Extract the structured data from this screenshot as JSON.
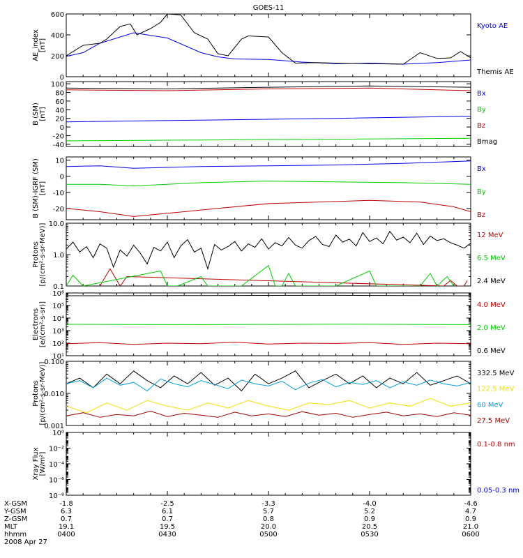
{
  "title": "GOES-11",
  "colors": {
    "black": "#000000",
    "red": "#c00000",
    "green": "#00cc00",
    "blue": "#0000ee",
    "cyan": "#00a0e0",
    "yellow": "#f0e000",
    "dark_red": "#a00000"
  },
  "time_axis": {
    "rows": [
      {
        "label": "X-GSM",
        "values": [
          "-1.8",
          "-2.5",
          "-3.3",
          "-4.0",
          "-4.6"
        ]
      },
      {
        "label": "Y-GSM",
        "values": [
          "6.3",
          "6.1",
          "5.7",
          "5.2",
          "4.7"
        ]
      },
      {
        "label": "Z-GSM",
        "values": [
          "0.7",
          "0.7",
          "0.8",
          "0.9",
          "0.9"
        ]
      },
      {
        "label": "MLT",
        "values": [
          "19.1",
          "19.5",
          "20.0",
          "20.5",
          "21.0"
        ]
      },
      {
        "label": "hhmm",
        "values": [
          "0400",
          "0430",
          "0500",
          "0530",
          "0600"
        ]
      }
    ],
    "date": "2008 Apr 27"
  },
  "chart_data": [
    {
      "type": "line",
      "scale": "linear",
      "ylabel": [
        "AE_index",
        "[nT]"
      ],
      "ylim": [
        0,
        600
      ],
      "yticks": [
        0,
        200,
        400,
        600
      ],
      "ytick_labels": [
        "0",
        "200",
        "400",
        "600"
      ],
      "series": [
        {
          "name": "Kyoto AE",
          "color": "#0000ee",
          "x": [
            0,
            5,
            10,
            20,
            30,
            40,
            45,
            50,
            60,
            70,
            80,
            90,
            100,
            110,
            120
          ],
          "y": [
            195,
            230,
            320,
            420,
            370,
            230,
            190,
            170,
            165,
            140,
            125,
            130,
            120,
            135,
            160
          ]
        },
        {
          "name": "Themis AE",
          "color": "#000000",
          "x": [
            0,
            5,
            10,
            12,
            16,
            19,
            21,
            25,
            28,
            30,
            34,
            38,
            42,
            45,
            48,
            52,
            54,
            60,
            64,
            68,
            74,
            80,
            90,
            100,
            105,
            110,
            114,
            117,
            120
          ],
          "y": [
            200,
            300,
            320,
            360,
            480,
            505,
            400,
            460,
            520,
            600,
            590,
            420,
            360,
            220,
            200,
            360,
            390,
            380,
            230,
            130,
            135,
            130,
            125,
            120,
            230,
            175,
            180,
            240,
            180
          ]
        }
      ]
    },
    {
      "type": "line",
      "scale": "linear",
      "ylabel": [
        "B (SM)",
        "[nT]"
      ],
      "ylim": [
        -45,
        105
      ],
      "yticks": [
        -40,
        -20,
        0,
        20,
        40,
        60,
        80,
        100
      ],
      "ytick_labels": [
        "-40",
        "-20",
        "0",
        "20",
        "40",
        "60",
        "80",
        "100"
      ],
      "series": [
        {
          "name": "Bx",
          "color": "#0000ee",
          "x": [
            0,
            40,
            80,
            120
          ],
          "y": [
            12,
            16,
            20,
            25
          ]
        },
        {
          "name": "By",
          "color": "#00cc00",
          "x": [
            0,
            40,
            80,
            120
          ],
          "y": [
            -32,
            -30,
            -28,
            -26
          ]
        },
        {
          "name": "Bz",
          "color": "#c00000",
          "x": [
            0,
            30,
            60,
            90,
            120
          ],
          "y": [
            86,
            84,
            88,
            90,
            84
          ]
        },
        {
          "name": "Bmag",
          "color": "#000000",
          "x": [
            0,
            30,
            60,
            90,
            120
          ],
          "y": [
            90,
            88,
            92,
            95,
            92
          ]
        }
      ]
    },
    {
      "type": "line",
      "scale": "linear",
      "ylabel": [
        "B (SM)-IGRF (SM)",
        "[nT]"
      ],
      "ylim": [
        -27,
        12
      ],
      "yticks": [
        -20,
        -10,
        0,
        10
      ],
      "ytick_labels": [
        "-20",
        "-10",
        "0",
        "10"
      ],
      "series": [
        {
          "name": "Bx",
          "color": "#0000ee",
          "x": [
            0,
            10,
            20,
            40,
            60,
            80,
            100,
            120
          ],
          "y": [
            6,
            6.5,
            5,
            6,
            6.5,
            7,
            8,
            9.5
          ]
        },
        {
          "name": "By",
          "color": "#00cc00",
          "x": [
            0,
            10,
            20,
            40,
            60,
            80,
            100,
            120
          ],
          "y": [
            -5,
            -5,
            -6,
            -4,
            -3,
            -3.5,
            -4,
            -5
          ]
        },
        {
          "name": "Bz",
          "color": "#c00000",
          "x": [
            0,
            10,
            20,
            30,
            45,
            60,
            75,
            90,
            105,
            115,
            120
          ],
          "y": [
            -20,
            -22,
            -25,
            -23,
            -20,
            -17,
            -16,
            -15,
            -16,
            -19,
            -22
          ]
        }
      ]
    },
    {
      "type": "line",
      "scale": "log",
      "ylabel": [
        "Protons",
        "[p/(cm²-s-sr-MeV)]"
      ],
      "ylim": [
        0.1,
        10
      ],
      "yticks": [
        0.1,
        1,
        10
      ],
      "ytick_labels": [
        "0.1",
        "1.0",
        "10.0"
      ],
      "series": [
        {
          "name": "12 MeV",
          "color": "#c00000",
          "x": [
            10,
            13,
            16,
            18,
            112,
            114,
            116,
            118,
            119
          ],
          "y": [
            0.1,
            0.35,
            0.1,
            0.2,
            0.1,
            0.15,
            0.1,
            0.1,
            0.15
          ]
        },
        {
          "name": "6.5 MeV",
          "color": "#00cc00",
          "x": [
            0,
            2,
            5,
            28,
            30,
            33,
            40,
            42,
            48,
            50,
            52,
            60,
            62,
            64,
            66,
            68,
            72,
            78,
            80,
            90,
            92,
            94,
            97,
            105,
            108,
            110,
            113,
            115
          ],
          "y": [
            0.1,
            0.22,
            0.1,
            0.3,
            0.1,
            0.1,
            0.2,
            0.1,
            0.1,
            0.1,
            0.1,
            0.45,
            0.1,
            0.1,
            0.25,
            0.1,
            0.1,
            0.1,
            0.1,
            0.3,
            0.1,
            0.1,
            0.1,
            0.1,
            0.25,
            0.1,
            0.2,
            0.1
          ]
        },
        {
          "name": "2.4 MeV",
          "color": "#000000",
          "x": [
            0,
            2,
            4,
            6,
            8,
            10,
            12,
            14,
            16,
            18,
            20,
            22,
            24,
            26,
            28,
            30,
            32,
            34,
            36,
            38,
            40,
            42,
            44,
            46,
            48,
            50,
            52,
            54,
            56,
            58,
            60,
            62,
            64,
            66,
            68,
            70,
            72,
            74,
            76,
            78,
            80,
            82,
            84,
            86,
            88,
            90,
            92,
            94,
            96,
            98,
            100,
            102,
            104,
            106,
            108,
            110,
            112,
            114,
            116,
            118,
            120
          ],
          "y": [
            1.5,
            2.5,
            1.2,
            1.8,
            0.8,
            2.2,
            1.6,
            0.4,
            1.4,
            0.9,
            2,
            1.1,
            0.5,
            1.7,
            1.3,
            2.5,
            0.8,
            1.9,
            3,
            1.2,
            1.6,
            0.35,
            2.1,
            1.4,
            1.8,
            2.6,
            1.3,
            2.2,
            1.7,
            3.2,
            1.5,
            2.4,
            1.9,
            3.5,
            2,
            1.6,
            2.8,
            3.8,
            2.1,
            1.8,
            4.2,
            2.5,
            3.1,
            1.9,
            5,
            2.6,
            3.4,
            2.2,
            5.5,
            2.9,
            3.6,
            2.4,
            4.8,
            2.1,
            3.9,
            2.8,
            3.2,
            2.4,
            2,
            1.6,
            2.3
          ]
        }
      ]
    },
    {
      "type": "line",
      "scale": "log",
      "ylabel": [
        "Electrons",
        "[e/(cm²-s-sr)]"
      ],
      "ylim": [
        10,
        1000000
      ],
      "yticks": [
        10,
        100,
        1000,
        10000,
        100000,
        1000000
      ],
      "ytick_labels": [
        "10¹",
        "10²",
        "10³",
        "10⁴",
        "10⁵",
        "10⁶"
      ],
      "series": [
        {
          "name": "4.0 MeV",
          "color": "#c00000",
          "x": [
            0,
            10,
            20,
            30,
            40,
            50,
            60,
            70,
            80,
            90,
            100,
            110,
            120
          ],
          "y": [
            90,
            110,
            80,
            100,
            90,
            120,
            85,
            100,
            95,
            110,
            80,
            100,
            90
          ]
        },
        {
          "name": "2.0 MeV",
          "color": "#00cc00",
          "x": [
            0,
            40,
            80,
            120
          ],
          "y": [
            3200,
            3000,
            3300,
            3000
          ]
        },
        {
          "name": "0.6 MeV",
          "color": "#000000",
          "x": [
            0,
            40,
            80,
            120
          ],
          "y": [
            600000,
            620000,
            650000,
            600000
          ]
        }
      ]
    },
    {
      "type": "line",
      "scale": "log",
      "ylabel": [
        "Protons",
        "[p/(cm²-s-sr-MeV)]"
      ],
      "ylim": [
        0.001,
        0.1
      ],
      "yticks": [
        0.001,
        0.01,
        0.1
      ],
      "ytick_labels": [
        "0.001",
        "0.010",
        "0.100"
      ],
      "series": [
        {
          "name": "332.5 MeV",
          "color": "#000000",
          "x": [
            0,
            4,
            8,
            12,
            16,
            20,
            24,
            28,
            32,
            36,
            40,
            44,
            48,
            52,
            56,
            60,
            64,
            68,
            72,
            76,
            80,
            84,
            88,
            92,
            96,
            100,
            104,
            108,
            112,
            116,
            120
          ],
          "y": [
            0.02,
            0.03,
            0.015,
            0.04,
            0.02,
            0.05,
            0.025,
            0.015,
            0.035,
            0.02,
            0.045,
            0.018,
            0.03,
            0.012,
            0.04,
            0.02,
            0.03,
            0.05,
            0.015,
            0.025,
            0.04,
            0.02,
            0.035,
            0.015,
            0.03,
            0.02,
            0.045,
            0.018,
            0.025,
            0.035,
            0.02
          ]
        },
        {
          "name": "122.5 MeV",
          "color": "#f0e000",
          "x": [
            0,
            6,
            12,
            18,
            24,
            30,
            36,
            42,
            48,
            54,
            60,
            66,
            72,
            78,
            84,
            90,
            96,
            102,
            108,
            114,
            120
          ],
          "y": [
            0.004,
            0.0025,
            0.005,
            0.003,
            0.006,
            0.004,
            0.003,
            0.005,
            0.0035,
            0.006,
            0.004,
            0.003,
            0.005,
            0.0045,
            0.006,
            0.0035,
            0.005,
            0.004,
            0.007,
            0.004,
            0.005
          ]
        },
        {
          "name": "60 MeV",
          "color": "#00a0e0",
          "x": [
            0,
            4,
            8,
            12,
            16,
            20,
            24,
            28,
            32,
            36,
            40,
            44,
            48,
            52,
            56,
            60,
            64,
            68,
            72,
            76,
            80,
            84,
            88,
            92,
            96,
            100,
            104,
            108,
            112,
            116,
            120
          ],
          "y": [
            0.02,
            0.025,
            0.015,
            0.03,
            0.018,
            0.022,
            0.012,
            0.028,
            0.02,
            0.016,
            0.025,
            0.019,
            0.014,
            0.026,
            0.02,
            0.017,
            0.024,
            0.013,
            0.021,
            0.027,
            0.016,
            0.022,
            0.019,
            0.025,
            0.015,
            0.023,
            0.018,
            0.026,
            0.02,
            0.017,
            0.022
          ]
        },
        {
          "name": "27.5 MeV",
          "color": "#a00000",
          "x": [
            0,
            5,
            10,
            15,
            20,
            25,
            30,
            35,
            40,
            45,
            50,
            55,
            60,
            65,
            70,
            75,
            80,
            85,
            90,
            95,
            100,
            105,
            110,
            115,
            120
          ],
          "y": [
            0.002,
            0.0025,
            0.0018,
            0.0022,
            0.002,
            0.0028,
            0.0019,
            0.0024,
            0.0021,
            0.0018,
            0.0026,
            0.002,
            0.0023,
            0.0019,
            0.0027,
            0.0021,
            0.0024,
            0.0018,
            0.0022,
            0.0026,
            0.002,
            0.0023,
            0.0019,
            0.0025,
            0.0021
          ]
        }
      ]
    },
    {
      "type": "line",
      "scale": "log",
      "ylabel": [
        "Xray Flux",
        "[W/m²]"
      ],
      "ylim": [
        1e-08,
        1
      ],
      "yticks": [
        1e-08,
        1e-06,
        0.0001,
        0.01,
        1
      ],
      "ytick_labels": [
        "10⁻⁸",
        "10⁻⁶",
        "10⁻⁴",
        "10⁻²",
        "10⁰"
      ],
      "series": [
        {
          "name": "0.1-0.8 nm",
          "color": "#c00000",
          "x": [],
          "y": []
        },
        {
          "name": "0.05-0.3 nm",
          "color": "#0000ee",
          "x": [],
          "y": []
        }
      ]
    }
  ]
}
